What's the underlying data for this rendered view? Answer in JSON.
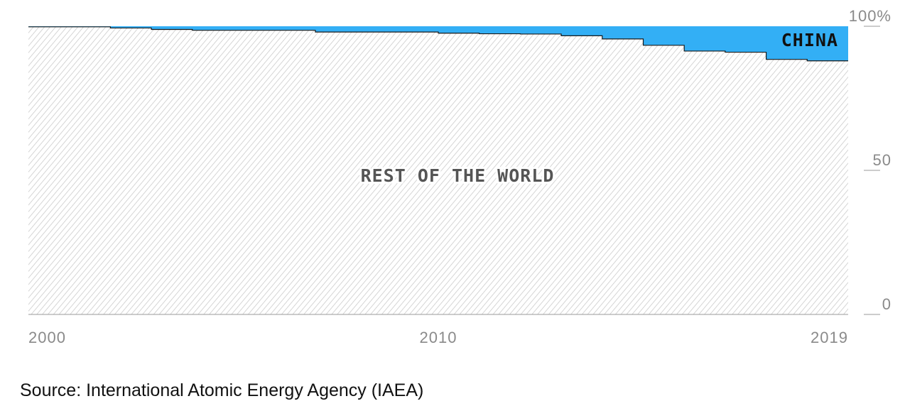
{
  "colors": {
    "china": "#33aff5",
    "rest_hatch": "#c4c4c4",
    "axis_text": "#8a8a8a",
    "step_line": "#1a1a1a"
  },
  "labels": {
    "china": "CHINA",
    "rest": "REST OF THE WORLD"
  },
  "source_text": "Source: International Atomic Energy Agency (IAEA)",
  "chart_data": {
    "type": "area",
    "stacked": true,
    "step": true,
    "x": [
      2000,
      2001,
      2002,
      2003,
      2004,
      2005,
      2006,
      2007,
      2008,
      2009,
      2010,
      2011,
      2012,
      2013,
      2014,
      2015,
      2016,
      2017,
      2018,
      2019
    ],
    "series": [
      {
        "name": "REST OF THE WORLD",
        "values": [
          99.8,
          99.8,
          99.4,
          98.9,
          98.6,
          98.6,
          98.6,
          98.0,
          98.0,
          98.0,
          97.6,
          97.4,
          97.3,
          96.7,
          95.6,
          93.4,
          91.4,
          91.0,
          88.5,
          88.0
        ]
      },
      {
        "name": "CHINA",
        "values": [
          0.2,
          0.2,
          0.6,
          1.1,
          1.4,
          1.4,
          1.4,
          2.0,
          2.0,
          2.0,
          2.4,
          2.6,
          2.7,
          3.3,
          4.4,
          6.6,
          8.6,
          9.0,
          11.5,
          12.0
        ]
      }
    ],
    "xticks": [
      "2000",
      "2010",
      "2019"
    ],
    "yticks": [
      "0",
      "50",
      "100%"
    ],
    "ylim": [
      0,
      100
    ],
    "xlim": [
      2000,
      2020
    ],
    "grid": false,
    "legend": "inline labels"
  }
}
